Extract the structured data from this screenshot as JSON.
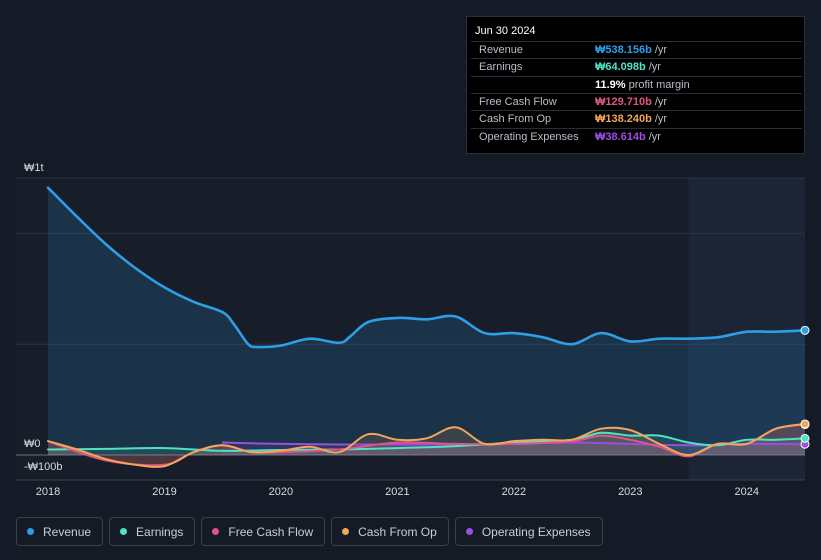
{
  "tooltip": {
    "date": "Jun 30 2024",
    "rows": [
      {
        "label": "Revenue",
        "value": "₩538.156b",
        "unit": "/yr",
        "color": "#2e9fe6"
      },
      {
        "label": "Earnings",
        "value": "₩64.098b",
        "unit": "/yr",
        "color": "#4fe3c4"
      },
      {
        "label": "",
        "value": "11.9%",
        "unit": "profit margin",
        "color": "#ffffff"
      },
      {
        "label": "Free Cash Flow",
        "value": "₩129.710b",
        "unit": "/yr",
        "color": "#e05486"
      },
      {
        "label": "Cash From Op",
        "value": "₩138.240b",
        "unit": "/yr",
        "color": "#f2a65a"
      },
      {
        "label": "Operating Expenses",
        "value": "₩38.614b",
        "unit": "/yr",
        "color": "#9c4ee0"
      }
    ]
  },
  "legend": [
    {
      "label": "Revenue",
      "color": "#2e9fe6"
    },
    {
      "label": "Earnings",
      "color": "#4fe3c4"
    },
    {
      "label": "Free Cash Flow",
      "color": "#e05486"
    },
    {
      "label": "Cash From Op",
      "color": "#f2a65a"
    },
    {
      "label": "Operating Expenses",
      "color": "#9c4ee0"
    }
  ],
  "chart_data": {
    "type": "area",
    "title": "",
    "xlabel": "",
    "ylabel": "",
    "y_unit_labels": {
      "top": "₩1t",
      "zero": "₩0",
      "bottom": "-₩100b"
    },
    "ylim": [
      -100,
      1000
    ],
    "xlim": [
      2018.0,
      2024.5
    ],
    "x_ticks": [
      "2018",
      "2019",
      "2020",
      "2021",
      "2022",
      "2023",
      "2024"
    ],
    "highlight_from": 2023.5,
    "series": [
      {
        "name": "Revenue",
        "color": "#2e9fe6",
        "x": [
          2018.0,
          2018.25,
          2018.5,
          2018.75,
          2019.0,
          2019.25,
          2019.5,
          2019.6,
          2019.72,
          2019.8,
          2020.0,
          2020.25,
          2020.5,
          2020.6,
          2020.75,
          2021.0,
          2021.25,
          2021.5,
          2021.75,
          2022.0,
          2022.25,
          2022.5,
          2022.75,
          2023.0,
          2023.25,
          2023.5,
          2023.75,
          2024.0,
          2024.25,
          2024.5
        ],
        "y": [
          965,
          860,
          760,
          675,
          605,
          553,
          515,
          470,
          400,
          390,
          395,
          420,
          405,
          430,
          480,
          495,
          490,
          500,
          440,
          440,
          425,
          400,
          440,
          410,
          420,
          420,
          425,
          445,
          445,
          450
        ]
      },
      {
        "name": "Earnings",
        "color": "#4fe3c4",
        "x": [
          2018.0,
          2018.5,
          2019.0,
          2019.5,
          2020.0,
          2020.5,
          2021.0,
          2021.5,
          2022.0,
          2022.5,
          2022.75,
          2023.0,
          2023.25,
          2023.5,
          2023.75,
          2024.0,
          2024.25,
          2024.5
        ],
        "y": [
          20,
          22,
          25,
          15,
          18,
          20,
          25,
          32,
          45,
          55,
          80,
          70,
          70,
          45,
          35,
          55,
          55,
          60
        ]
      },
      {
        "name": "Free Cash Flow",
        "color": "#e05486",
        "x": [
          2018.0,
          2018.5,
          2019.0,
          2019.25,
          2019.5,
          2019.75,
          2020.0,
          2020.5,
          2021.0,
          2021.5,
          2022.0,
          2022.5,
          2022.75,
          2023.0,
          2023.25,
          2023.5,
          2023.75,
          2024.0,
          2024.25,
          2024.5
        ],
        "y": [
          50,
          -20,
          -35,
          10,
          35,
          10,
          10,
          20,
          45,
          40,
          40,
          50,
          70,
          55,
          30,
          -5,
          40,
          40,
          95,
          110
        ]
      },
      {
        "name": "Cash From Op",
        "color": "#f2a65a",
        "x": [
          2018.0,
          2018.25,
          2018.5,
          2018.75,
          2019.0,
          2019.25,
          2019.5,
          2019.75,
          2020.0,
          2020.25,
          2020.5,
          2020.75,
          2021.0,
          2021.25,
          2021.5,
          2021.75,
          2022.0,
          2022.25,
          2022.5,
          2022.75,
          2023.0,
          2023.25,
          2023.5,
          2023.75,
          2024.0,
          2024.25,
          2024.5
        ],
        "y": [
          50,
          20,
          -15,
          -35,
          -40,
          10,
          35,
          10,
          15,
          30,
          10,
          75,
          55,
          60,
          100,
          40,
          50,
          55,
          55,
          95,
          90,
          40,
          0,
          40,
          40,
          95,
          112
        ]
      },
      {
        "name": "Operating Expenses",
        "color": "#9c4ee0",
        "x": [
          2019.5,
          2020.0,
          2020.5,
          2021.0,
          2021.5,
          2022.0,
          2022.5,
          2023.0,
          2023.5,
          2024.0,
          2024.5
        ],
        "y": [
          45,
          40,
          38,
          38,
          38,
          40,
          45,
          40,
          35,
          40,
          39
        ]
      }
    ]
  }
}
